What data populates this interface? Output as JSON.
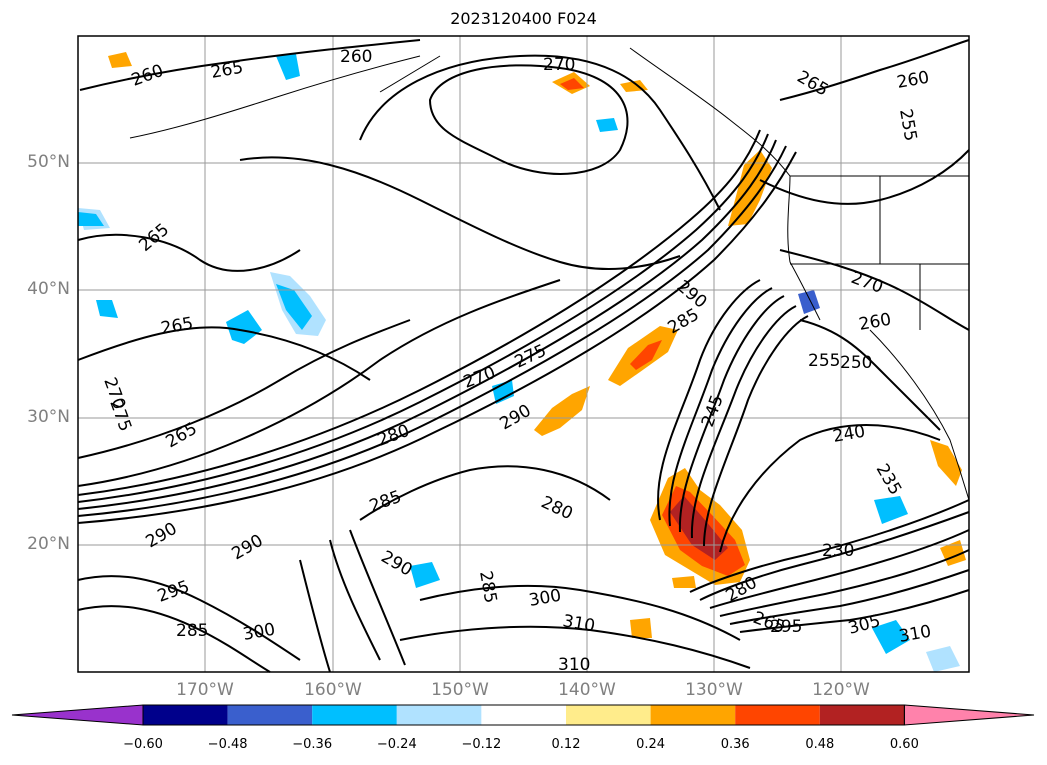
{
  "title": "2023120400 F024",
  "lat_labels": [
    "50°N",
    "40°N",
    "30°N",
    "20°N"
  ],
  "lon_labels": [
    "170°W",
    "160°W",
    "150°W",
    "140°W",
    "130°W",
    "120°W"
  ],
  "contour_labels": [
    "260",
    "265",
    "260",
    "270",
    "265",
    "260",
    "255",
    "265",
    "270",
    "260",
    "290",
    "285",
    "255",
    "250",
    "265",
    "270",
    "275",
    "290",
    "270",
    "275",
    "245",
    "240",
    "235",
    "265",
    "280",
    "285",
    "280",
    "290",
    "290",
    "290",
    "285",
    "230",
    "280",
    "300",
    "310",
    "265",
    "295",
    "305",
    "310",
    "295",
    "300",
    "285",
    "310"
  ],
  "colorbar": {
    "colors": [
      "#9932cc",
      "#00008b",
      "#3a5fcd",
      "#00bfff",
      "#b0e2ff",
      "#ffffff",
      "#ffec8b",
      "#ffa500",
      "#ff4500",
      "#b22222",
      "#ff82ab"
    ],
    "tick_labels": [
      "−0.60",
      "−0.48",
      "−0.36",
      "−0.24",
      "−0.12",
      "0.12",
      "0.24",
      "0.36",
      "0.48",
      "0.60"
    ]
  }
}
